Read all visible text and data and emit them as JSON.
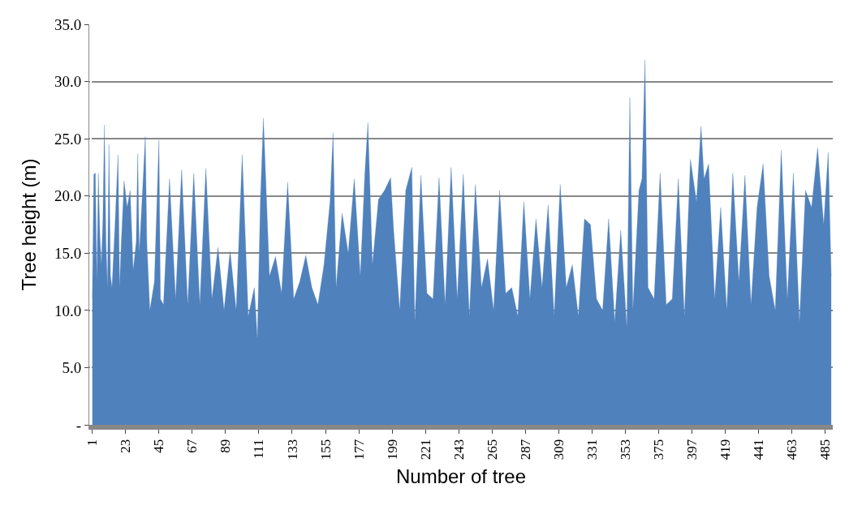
{
  "chart_data": {
    "type": "area",
    "xlabel": "Number of tree",
    "ylabel": "Tree height (m)",
    "color": "#4f81bd",
    "x": [
      1,
      2,
      3,
      4,
      5,
      6,
      7,
      8,
      9,
      10,
      11,
      12,
      13,
      14,
      16,
      18,
      19,
      20,
      22,
      24,
      26,
      28,
      30,
      31,
      32,
      34,
      36,
      37,
      39,
      42,
      45,
      46,
      48,
      52,
      56,
      60,
      64,
      68,
      72,
      76,
      80,
      84,
      88,
      92,
      96,
      100,
      104,
      108,
      110,
      112,
      114,
      118,
      122,
      126,
      130,
      134,
      138,
      142,
      146,
      150,
      154,
      158,
      160,
      162,
      166,
      170,
      174,
      178,
      181,
      183,
      186,
      190,
      194,
      198,
      200,
      204,
      208,
      212,
      214,
      218,
      222,
      226,
      230,
      234,
      238,
      242,
      246,
      250,
      254,
      258,
      262,
      266,
      270,
      274,
      278,
      282,
      286,
      290,
      294,
      298,
      302,
      306,
      310,
      314,
      318,
      322,
      326,
      330,
      334,
      338,
      342,
      346,
      350,
      354,
      356,
      358,
      362,
      364,
      366,
      368,
      372,
      376,
      380,
      384,
      388,
      392,
      396,
      400,
      403,
      405,
      408,
      412,
      416,
      420,
      424,
      428,
      432,
      436,
      440,
      444,
      448,
      452,
      456,
      460,
      464,
      468,
      472,
      476,
      480,
      484,
      487,
      489
    ],
    "values": [
      11.0,
      21.9,
      22.0,
      12.5,
      22.0,
      16.5,
      14.0,
      18.0,
      26.2,
      16.0,
      12.0,
      24.5,
      13.0,
      12.0,
      17.5,
      23.6,
      12.0,
      15.5,
      21.3,
      19.0,
      20.5,
      13.5,
      16.0,
      23.7,
      15.0,
      20.0,
      25.2,
      16.0,
      10.0,
      12.5,
      24.9,
      11.0,
      10.5,
      21.5,
      11.0,
      22.3,
      10.5,
      22.0,
      10.5,
      22.4,
      11.0,
      15.5,
      10.0,
      15.2,
      10.0,
      23.6,
      9.5,
      12.0,
      7.5,
      19.6,
      26.8,
      13.0,
      14.7,
      11.5,
      21.2,
      11.0,
      12.5,
      14.8,
      12.0,
      10.5,
      14.0,
      19.5,
      25.5,
      12.0,
      18.5,
      15.0,
      21.5,
      13.0,
      22.0,
      26.4,
      14.0,
      19.7,
      20.5,
      21.6,
      17.0,
      10.0,
      20.5,
      22.5,
      9.0,
      21.8,
      11.5,
      11.0,
      21.6,
      10.5,
      22.5,
      11.0,
      21.9,
      9.5,
      21.0,
      12.0,
      14.5,
      10.0,
      20.5,
      11.5,
      12.0,
      9.5,
      19.5,
      11.0,
      18.0,
      12.0,
      19.2,
      9.5,
      21.0,
      12.0,
      14.0,
      9.5,
      18.0,
      17.5,
      11.0,
      10.0,
      18.0,
      9.0,
      17.0,
      8.5,
      28.6,
      10.0,
      20.5,
      21.5,
      31.9,
      12.0,
      11.0,
      22.0,
      10.5,
      11.0,
      21.5,
      9.5,
      23.2,
      19.5,
      26.1,
      21.5,
      22.8,
      11.0,
      19.0,
      10.0,
      22.0,
      12.5,
      21.8,
      10.5,
      19.0,
      22.8,
      13.0,
      10.0,
      24.0,
      11.0,
      22.0,
      9.0,
      20.5,
      19.0,
      24.2,
      17.5,
      23.8,
      13.0
    ],
    "xlim": [
      -1,
      490
    ],
    "xticks": [
      1,
      23,
      45,
      67,
      89,
      111,
      133,
      155,
      177,
      199,
      221,
      243,
      265,
      287,
      309,
      331,
      353,
      375,
      397,
      419,
      441,
      463,
      485
    ],
    "ylim": [
      0,
      35
    ],
    "yticks": [
      {
        "value": 0,
        "label": "-"
      },
      {
        "value": 5,
        "label": "5.0"
      },
      {
        "value": 10,
        "label": "10.0"
      },
      {
        "value": 15,
        "label": "15.0"
      },
      {
        "value": 20,
        "label": "20.0"
      },
      {
        "value": 25,
        "label": "25.0"
      },
      {
        "value": 30,
        "label": "30.0"
      },
      {
        "value": 35,
        "label": "35.0"
      }
    ],
    "grid": "y",
    "legend": false
  }
}
